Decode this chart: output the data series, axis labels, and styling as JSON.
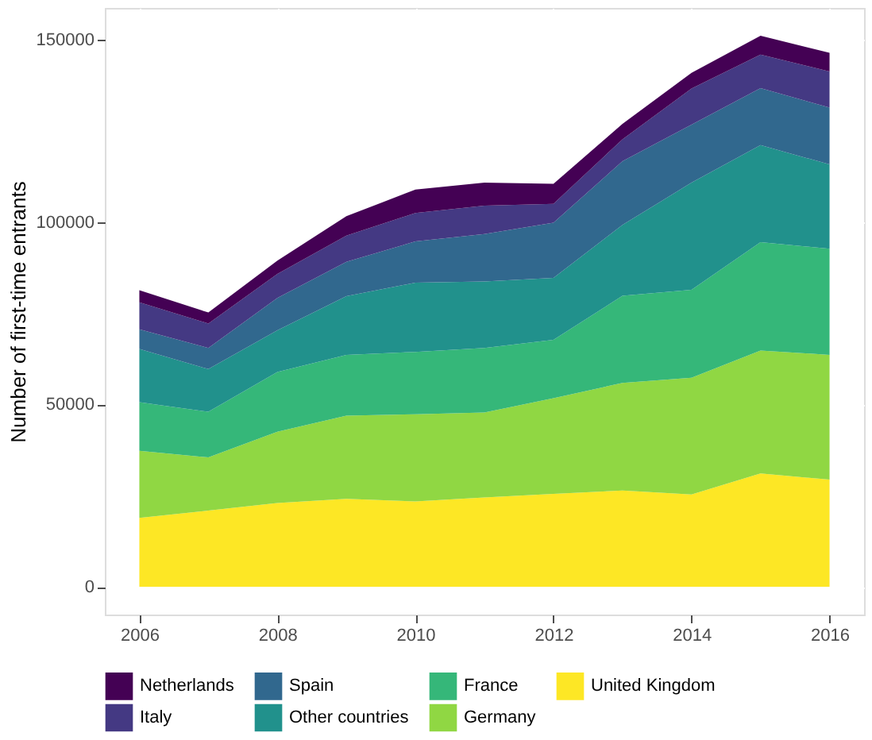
{
  "chart_data": {
    "type": "area",
    "stacked": true,
    "ylabel": "Number of first-time entrants",
    "x": [
      2006,
      2007,
      2008,
      2009,
      2010,
      2011,
      2012,
      2013,
      2014,
      2015,
      2016
    ],
    "series": [
      {
        "name": "United Kingdom",
        "color": "#fde725",
        "values": [
          18900,
          20900,
          23000,
          24100,
          23400,
          24500,
          25500,
          26400,
          25300,
          31100,
          29400
        ]
      },
      {
        "name": "Germany",
        "color": "#90d743",
        "values": [
          18400,
          14600,
          19500,
          22800,
          23900,
          23300,
          26200,
          29500,
          32000,
          33700,
          34200
        ]
      },
      {
        "name": "France",
        "color": "#35b779",
        "values": [
          13300,
          12500,
          16400,
          16700,
          17100,
          17700,
          16000,
          23900,
          24100,
          29700,
          29100
        ]
      },
      {
        "name": "Other countries",
        "color": "#21918c",
        "values": [
          14600,
          11700,
          11400,
          16100,
          19000,
          18200,
          17000,
          19400,
          29400,
          26600,
          23100
        ]
      },
      {
        "name": "Spain",
        "color": "#31688e",
        "values": [
          5400,
          5800,
          8900,
          9400,
          11300,
          13000,
          15100,
          17500,
          15900,
          15600,
          15600
        ]
      },
      {
        "name": "Italy",
        "color": "#443983",
        "values": [
          7400,
          6700,
          6600,
          7200,
          7800,
          7800,
          5200,
          6000,
          9900,
          9200,
          9900
        ]
      },
      {
        "name": "Netherlands",
        "color": "#440154",
        "values": [
          3300,
          3000,
          3600,
          5300,
          6400,
          6300,
          5500,
          4200,
          4300,
          5200,
          5100
        ]
      }
    ],
    "xlim": [
      2005.5,
      2016.5
    ],
    "xticks": [
      2006,
      2008,
      2010,
      2012,
      2014,
      2016
    ],
    "ylim": [
      -7600,
      158700
    ],
    "yticks": [
      0,
      50000,
      100000,
      150000
    ],
    "grid": true,
    "legend": "bottom"
  }
}
